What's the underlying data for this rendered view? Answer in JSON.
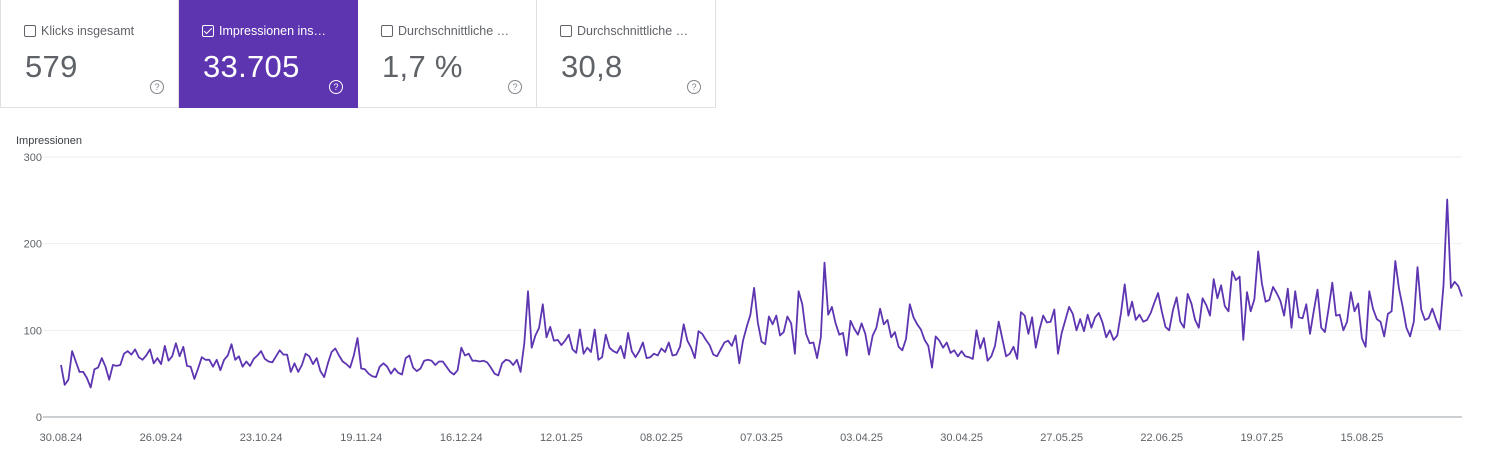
{
  "metrics": [
    {
      "label": "Klicks insgesamt",
      "value": "579",
      "checked": false
    },
    {
      "label": "Impressionen ins…",
      "value": "33.705",
      "checked": true
    },
    {
      "label": "Durchschnittliche …",
      "value": "1,7 %",
      "checked": false
    },
    {
      "label": "Durchschnittliche …",
      "value": "30,8",
      "checked": false
    }
  ],
  "help_glyph": "?",
  "colors": {
    "accent": "#5e35b1",
    "line": "#5e35b1",
    "grid": "#eeeeee",
    "axis": "#5f6368"
  },
  "chart_data": {
    "type": "line",
    "ylabel": "Impressionen",
    "ylim": [
      0,
      300
    ],
    "yticks": [
      0,
      100,
      200,
      300
    ],
    "xticks": [
      "30.08.24",
      "26.09.24",
      "23.10.24",
      "19.11.24",
      "16.12.24",
      "12.01.25",
      "08.02.25",
      "07.03.25",
      "03.04.25",
      "30.04.25",
      "27.05.25",
      "22.06.25",
      "19.07.25",
      "15.08.25"
    ],
    "x_start": "30.08.24",
    "x_end": "28.08.25",
    "grid": true,
    "legend": "none",
    "series": [
      {
        "values": [
          60,
          37,
          43,
          76,
          64,
          52,
          52,
          45,
          34,
          55,
          57,
          68,
          58,
          43,
          60,
          59,
          60,
          73,
          76,
          72,
          78,
          69,
          66,
          71,
          78,
          62,
          68,
          61,
          82,
          65,
          70,
          85,
          70,
          81,
          59,
          58,
          44,
          56,
          69,
          66,
          66,
          58,
          66,
          54,
          66,
          71,
          84,
          66,
          70,
          58,
          64,
          59,
          67,
          71,
          76,
          67,
          64,
          63,
          70,
          77,
          72,
          72,
          52,
          62,
          52,
          60,
          73,
          70,
          61,
          68,
          53,
          46,
          62,
          75,
          79,
          71,
          64,
          61,
          57,
          71,
          91,
          56,
          55,
          50,
          47,
          46,
          58,
          62,
          58,
          50,
          56,
          51,
          49,
          68,
          71,
          57,
          53,
          56,
          65,
          66,
          65,
          60,
          64,
          64,
          58,
          52,
          49,
          54,
          80,
          71,
          73,
          65,
          65,
          64,
          65,
          63,
          57,
          50,
          48,
          62,
          66,
          65,
          60,
          66,
          52,
          85,
          145,
          80,
          94,
          103,
          130,
          92,
          104,
          88,
          89,
          83,
          88,
          95,
          78,
          74,
          101,
          73,
          80,
          75,
          101,
          66,
          69,
          95,
          80,
          76,
          74,
          82,
          68,
          97,
          76,
          69,
          76,
          86,
          68,
          69,
          73,
          71,
          79,
          75,
          86,
          71,
          72,
          81,
          107,
          88,
          80,
          68,
          99,
          96,
          89,
          83,
          72,
          70,
          78,
          86,
          88,
          82,
          94,
          62,
          88,
          104,
          118,
          149,
          109,
          87,
          84,
          116,
          107,
          117,
          94,
          98,
          116,
          108,
          73,
          145,
          130,
          96,
          85,
          86,
          68,
          92,
          178,
          118,
          127,
          108,
          95,
          97,
          71,
          111,
          102,
          95,
          108,
          96,
          72,
          94,
          103,
          125,
          107,
          112,
          92,
          98,
          81,
          77,
          90,
          130,
          115,
          107,
          101,
          89,
          82,
          57,
          93,
          88,
          80,
          86,
          74,
          77,
          70,
          76,
          70,
          69,
          67,
          100,
          79,
          91,
          65,
          70,
          82,
          110,
          90,
          70,
          73,
          81,
          67,
          121,
          117,
          96,
          115,
          80,
          101,
          117,
          109,
          110,
          124,
          73,
          97,
          112,
          127,
          119,
          100,
          113,
          99,
          118,
          103,
          115,
          120,
          109,
          92,
          100,
          89,
          94,
          120,
          153,
          117,
          133,
          112,
          118,
          110,
          112,
          120,
          132,
          143,
          122,
          104,
          100,
          123,
          138,
          110,
          103,
          142,
          131,
          112,
          103,
          137,
          129,
          117,
          159,
          137,
          152,
          128,
          122,
          168,
          158,
          162,
          89,
          144,
          122,
          136,
          191,
          154,
          133,
          135,
          150,
          143,
          134,
          117,
          148,
          103,
          145,
          115,
          114,
          130,
          96,
          122,
          147,
          103,
          98,
          125,
          155,
          117,
          118,
          100,
          110,
          144,
          122,
          131,
          91,
          81,
          145,
          125,
          113,
          110,
          93,
          119,
          122,
          180,
          148,
          127,
          103,
          93,
          110,
          173,
          124,
          112,
          114,
          125,
          112,
          101,
          152,
          251,
          149,
          156,
          151,
          139
        ]
      }
    ]
  }
}
